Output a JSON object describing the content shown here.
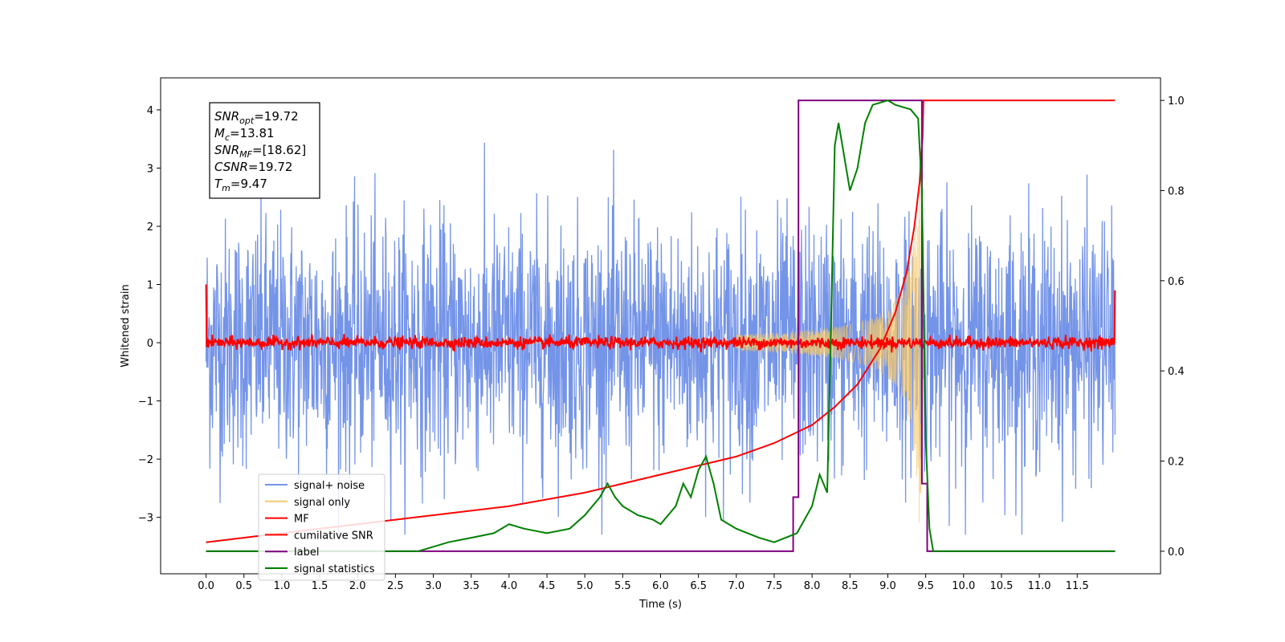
{
  "chart_data": {
    "type": "line",
    "xlabel": "Time (s)",
    "ylabel": "Whitened strain",
    "xlim": [
      -0.6,
      12.6
    ],
    "ylim": [
      -3.97,
      4.55
    ],
    "ylim_right": [
      -0.05,
      1.05
    ],
    "x_ticks": [
      "0.0",
      "0.5",
      "1.0",
      "1.5",
      "2.0",
      "2.5",
      "3.0",
      "3.5",
      "4.0",
      "4.5",
      "5.0",
      "5.5",
      "6.0",
      "6.5",
      "7.0",
      "7.5",
      "8.0",
      "8.5",
      "9.0",
      "9.5",
      "10.0",
      "10.5",
      "11.0",
      "11.5"
    ],
    "y_ticks": [
      "−3",
      "−2",
      "−1",
      "0",
      "1",
      "2",
      "3",
      "4"
    ],
    "y_ticks_right": [
      "0.0",
      "0.2",
      "0.4",
      "0.6",
      "0.8",
      "1.0"
    ],
    "grid": false,
    "legend_position": "lower-left",
    "annotation": {
      "lines": [
        {
          "main": "SNR",
          "sub": "opt",
          "rest": "=19.72"
        },
        {
          "main": "M",
          "sub": "c",
          "rest": "=13.81"
        },
        {
          "main": "SNR",
          "sub": "MF",
          "rest": "=[18.62]"
        },
        {
          "main": "CSNR",
          "sub": "",
          "rest": "=19.72"
        },
        {
          "main": "T",
          "sub": "m",
          "rest": "=9.47"
        }
      ]
    },
    "series": [
      {
        "name": "signal+ noise",
        "color": "#7494e8",
        "axis": "left",
        "kind": "noise",
        "x_range": [
          0.0,
          12.0
        ],
        "amplitude_range": [
          -3.3,
          3.9
        ]
      },
      {
        "name": "signal only",
        "color": "#f5c86a",
        "axis": "left",
        "kind": "chirp",
        "merger_time": 9.47,
        "peak_amplitude": 3.1
      },
      {
        "name": "MF",
        "color": "#ff0000",
        "axis": "left",
        "kind": "flat-noise",
        "level": 0.0,
        "edge_values": [
          1.0,
          0.9
        ]
      },
      {
        "name": "cumilative SNR",
        "color": "#ff0000",
        "axis": "right",
        "x": [
          0.0,
          1.0,
          2.0,
          3.0,
          4.0,
          5.0,
          6.0,
          6.5,
          7.0,
          7.5,
          8.0,
          8.3,
          8.6,
          8.9,
          9.1,
          9.25,
          9.35,
          9.42,
          9.46,
          9.47,
          12.0
        ],
        "y": [
          0.02,
          0.04,
          0.06,
          0.08,
          0.1,
          0.13,
          0.17,
          0.19,
          0.21,
          0.24,
          0.28,
          0.32,
          0.37,
          0.45,
          0.53,
          0.62,
          0.72,
          0.82,
          0.92,
          1.0,
          1.0
        ]
      },
      {
        "name": "label",
        "color": "#800080",
        "axis": "right",
        "x": [
          0.0,
          7.75,
          7.75,
          7.82,
          7.82,
          9.45,
          9.45,
          9.52,
          9.52,
          12.0
        ],
        "y": [
          0.0,
          0.0,
          0.12,
          0.12,
          1.0,
          1.0,
          0.15,
          0.15,
          0.0,
          0.0
        ]
      },
      {
        "name": "signal statistics",
        "color": "#008000",
        "axis": "right",
        "x": [
          0.0,
          1.0,
          2.0,
          2.8,
          3.2,
          3.5,
          3.8,
          4.0,
          4.2,
          4.5,
          4.8,
          5.0,
          5.2,
          5.3,
          5.4,
          5.5,
          5.7,
          5.9,
          6.0,
          6.2,
          6.3,
          6.4,
          6.5,
          6.6,
          6.7,
          6.8,
          7.0,
          7.3,
          7.5,
          7.8,
          8.0,
          8.1,
          8.2,
          8.25,
          8.3,
          8.35,
          8.4,
          8.45,
          8.5,
          8.6,
          8.65,
          8.7,
          8.8,
          9.0,
          9.1,
          9.3,
          9.4,
          9.45,
          9.5,
          9.55,
          9.6,
          11.0,
          12.0
        ],
        "y": [
          0.0,
          0.0,
          0.0,
          0.0,
          0.02,
          0.03,
          0.04,
          0.06,
          0.05,
          0.04,
          0.05,
          0.08,
          0.12,
          0.15,
          0.12,
          0.1,
          0.08,
          0.07,
          0.06,
          0.1,
          0.15,
          0.12,
          0.18,
          0.21,
          0.15,
          0.07,
          0.05,
          0.03,
          0.02,
          0.04,
          0.1,
          0.17,
          0.13,
          0.5,
          0.9,
          0.95,
          0.9,
          0.85,
          0.8,
          0.85,
          0.9,
          0.95,
          0.99,
          1.0,
          0.99,
          0.98,
          0.96,
          0.8,
          0.25,
          0.05,
          0.0,
          0.0,
          0.0
        ]
      }
    ]
  }
}
